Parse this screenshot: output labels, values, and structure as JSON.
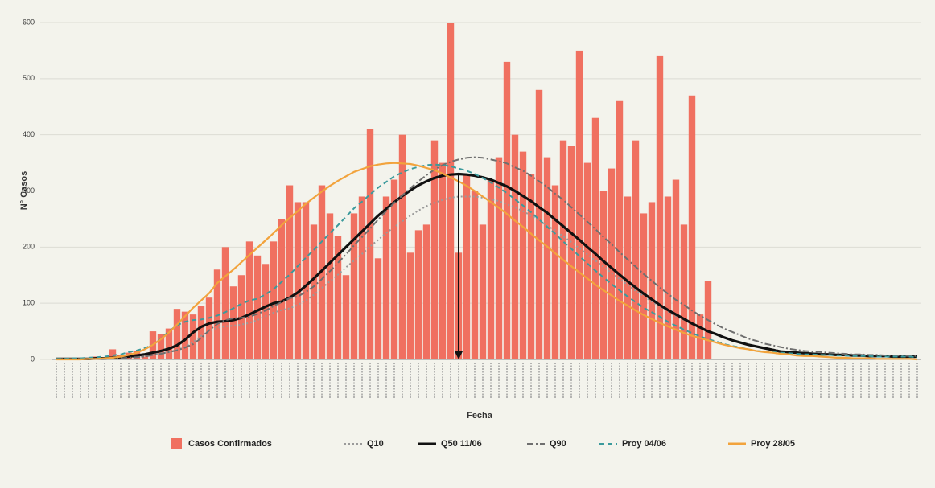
{
  "chart_data": {
    "type": "bar",
    "xlabel": "Fecha",
    "ylabel": "N° Casos",
    "ylim": [
      0,
      600
    ],
    "yticks": [
      0,
      100,
      200,
      300,
      400,
      500,
      600
    ],
    "grid": true,
    "legend": "bottom",
    "categories": [
      null,
      null,
      null,
      null,
      null,
      null,
      null,
      null,
      null,
      null,
      null,
      null,
      null,
      null,
      null,
      null,
      null,
      null,
      null,
      null,
      null,
      null,
      null,
      null,
      null,
      null,
      null,
      null,
      null,
      null,
      null,
      null,
      null,
      null,
      null,
      null,
      null,
      null,
      null,
      null,
      null,
      null,
      null,
      null,
      null,
      null,
      null,
      null,
      null,
      null,
      null,
      null,
      null,
      null,
      null,
      null,
      null,
      null,
      null,
      null,
      null,
      null,
      null,
      null,
      null,
      null,
      null,
      null,
      null,
      null,
      null,
      null,
      null,
      null,
      null,
      null,
      null,
      null,
      null,
      null,
      null,
      null,
      null,
      null,
      null,
      null,
      null,
      null,
      null,
      null,
      null,
      null,
      null,
      null,
      null,
      null,
      null,
      null,
      null,
      null,
      null,
      null,
      null,
      null,
      null,
      null,
      null,
      null
    ],
    "series": [
      {
        "name": "Casos Confirmados",
        "type": "bar",
        "color": "#f07060",
        "values": [
          null,
          null,
          null,
          null,
          null,
          5,
          3,
          18,
          8,
          12,
          15,
          5,
          50,
          45,
          55,
          90,
          85,
          80,
          95,
          110,
          160,
          200,
          130,
          150,
          210,
          185,
          170,
          210,
          250,
          310,
          280,
          280,
          240,
          310,
          260,
          220,
          150,
          260,
          290,
          410,
          180,
          290,
          320,
          400,
          190,
          230,
          240,
          390,
          350,
          600,
          190,
          330,
          300,
          240,
          320,
          360,
          530,
          400,
          370,
          330,
          480,
          360,
          310,
          390,
          380,
          550,
          350,
          430,
          300,
          340,
          460,
          290,
          390,
          260,
          280,
          540,
          290,
          320,
          240,
          470,
          80,
          140,
          null,
          null,
          null,
          null,
          null,
          null,
          null,
          null,
          null,
          null,
          null,
          null,
          null,
          null,
          null,
          null,
          null,
          null,
          null,
          null,
          null,
          null,
          null,
          null,
          null,
          null
        ]
      },
      {
        "name": "Q10",
        "type": "line",
        "color": "#9a9a9a",
        "style": "dotted",
        "values": [
          1,
          1,
          1,
          1,
          1,
          1,
          2,
          2,
          3,
          4,
          4,
          6,
          8,
          11,
          13,
          17,
          22,
          31,
          42,
          51,
          56,
          59,
          60,
          62,
          65,
          70,
          77,
          83,
          88,
          91,
          97,
          105,
          115,
          127,
          139,
          151,
          164,
          176,
          188,
          201,
          213,
          225,
          236,
          246,
          256,
          265,
          273,
          279,
          284,
          288,
          290,
          290,
          290,
          288,
          285,
          282,
          276,
          271,
          264,
          256,
          248,
          238,
          230,
          219,
          209,
          198,
          187,
          176,
          165,
          154,
          143,
          133,
          122,
          113,
          103,
          94,
          85,
          77,
          70,
          63,
          56,
          50,
          44,
          40,
          34,
          30,
          26,
          23,
          20,
          18,
          15,
          12,
          11,
          11,
          10,
          9,
          8,
          8,
          7,
          7,
          6,
          6,
          5,
          5,
          5,
          4,
          4,
          4
        ]
      },
      {
        "name": "Q50 11/06",
        "type": "line",
        "color": "#111111",
        "style": "solid",
        "values": [
          1,
          1,
          1,
          1,
          1,
          2,
          2,
          3,
          4,
          5,
          7,
          9,
          12,
          15,
          19,
          25,
          35,
          48,
          58,
          64,
          67,
          68,
          70,
          74,
          80,
          87,
          94,
          100,
          103,
          110,
          119,
          131,
          144,
          158,
          172,
          186,
          200,
          214,
          228,
          242,
          256,
          268,
          280,
          291,
          301,
          310,
          317,
          323,
          327,
          329,
          330,
          329,
          327,
          324,
          320,
          314,
          308,
          300,
          291,
          282,
          271,
          261,
          249,
          237,
          225,
          213,
          200,
          188,
          175,
          163,
          151,
          139,
          128,
          117,
          107,
          97,
          88,
          80,
          72,
          64,
          57,
          50,
          45,
          39,
          34,
          30,
          26,
          23,
          20,
          17,
          14,
          13,
          12,
          11,
          10,
          9,
          9,
          8,
          8,
          7,
          7,
          6,
          6,
          6,
          5,
          5,
          5,
          5
        ]
      },
      {
        "name": "Q90",
        "type": "line",
        "color": "#6f6f6f",
        "style": "dashdot",
        "values": [
          1,
          1,
          1,
          1,
          1,
          1,
          1,
          2,
          2,
          3,
          4,
          5,
          8,
          10,
          13,
          16,
          21,
          27,
          38,
          52,
          63,
          70,
          73,
          74,
          76,
          81,
          87,
          95,
          102,
          109,
          112,
          120,
          130,
          143,
          157,
          172,
          187,
          203,
          218,
          233,
          249,
          264,
          279,
          292,
          305,
          317,
          328,
          338,
          346,
          352,
          356,
          359,
          360,
          359,
          356,
          353,
          349,
          342,
          336,
          327,
          317,
          307,
          295,
          284,
          271,
          258,
          245,
          232,
          218,
          205,
          191,
          178,
          165,
          152,
          140,
          128,
          117,
          106,
          97,
          87,
          78,
          70,
          62,
          55,
          49,
          43,
          37,
          33,
          28,
          25,
          22,
          19,
          17,
          15,
          14,
          13,
          12,
          11,
          10,
          9,
          9,
          8,
          8,
          7,
          7,
          7,
          6,
          6
        ]
      },
      {
        "name": "Proy 04/06",
        "type": "line",
        "color": "#3b9a9c",
        "style": "dashed",
        "values": [
          1,
          1,
          2,
          2,
          3,
          4,
          5,
          7,
          9,
          13,
          16,
          20,
          26,
          37,
          50,
          61,
          67,
          70,
          71,
          74,
          78,
          84,
          91,
          99,
          105,
          108,
          116,
          125,
          138,
          151,
          166,
          181,
          195,
          210,
          225,
          239,
          254,
          269,
          281,
          294,
          306,
          316,
          326,
          333,
          339,
          343,
          346,
          347,
          346,
          344,
          340,
          336,
          330,
          323,
          315,
          306,
          296,
          285,
          274,
          262,
          249,
          236,
          224,
          210,
          197,
          184,
          171,
          158,
          146,
          134,
          123,
          112,
          102,
          92,
          84,
          76,
          67,
          60,
          53,
          47,
          41,
          36,
          32,
          27,
          24,
          21,
          18,
          15,
          14,
          13,
          12,
          11,
          10,
          9,
          9,
          8,
          8,
          7,
          7,
          6,
          6,
          6,
          5,
          5,
          5,
          5,
          5,
          4
        ]
      },
      {
        "name": "Proy 28/05",
        "type": "line",
        "color": "#f2a33c",
        "style": "solid",
        "values": [
          0,
          0,
          0,
          0,
          1,
          1,
          2,
          3,
          5,
          8,
          12,
          18,
          26,
          36,
          48,
          62,
          77,
          92,
          105,
          118,
          136,
          148,
          160,
          173,
          186,
          199,
          212,
          225,
          239,
          252,
          264,
          277,
          288,
          299,
          309,
          318,
          326,
          334,
          339,
          344,
          347,
          349,
          350,
          349,
          348,
          345,
          341,
          337,
          331,
          324,
          317,
          309,
          300,
          290,
          280,
          270,
          259,
          247,
          236,
          224,
          212,
          201,
          189,
          177,
          166,
          155,
          144,
          133,
          123,
          114,
          104,
          96,
          87,
          79,
          72,
          65,
          59,
          53,
          47,
          42,
          38,
          34,
          30,
          26,
          23,
          20,
          18,
          15,
          13,
          12,
          10,
          9,
          7,
          6,
          6,
          5,
          4,
          3,
          3,
          2,
          2,
          2,
          1,
          1,
          1,
          1,
          1,
          0
        ]
      }
    ]
  }
}
